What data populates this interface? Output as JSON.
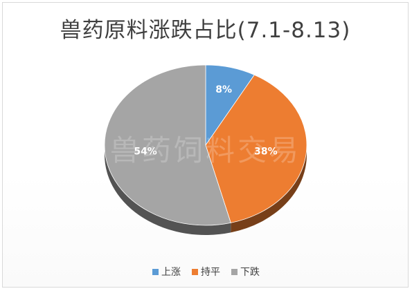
{
  "chart_data": {
    "type": "pie",
    "title": "兽药原料涨跌占比(7.1-8.13)",
    "watermark": "兽药饲料交易",
    "slices": [
      {
        "label": "上涨",
        "value": 8,
        "display": "8%",
        "color": "#5b9bd5"
      },
      {
        "label": "持平",
        "value": 38,
        "display": "38%",
        "color": "#ed7d31"
      },
      {
        "label": "下跌",
        "value": 54,
        "display": "54%",
        "color": "#a5a5a5"
      }
    ],
    "style": "3d",
    "legend_position": "bottom"
  }
}
